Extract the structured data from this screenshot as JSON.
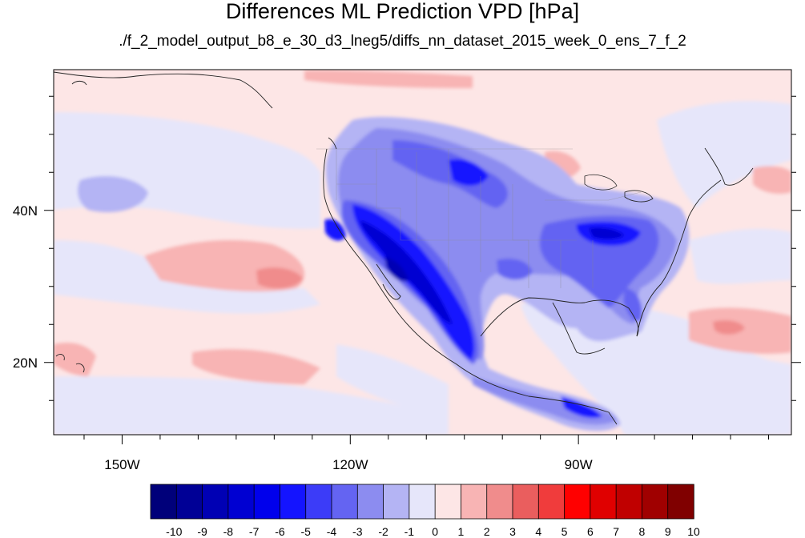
{
  "title": "Differences ML Prediction VPD [hPa]",
  "subtitle": "./f_2_model_output_b8_e_30_d3_lneg5/diffs_nn_dataset_2015_week_0_ens_7_f_2",
  "map": {
    "lon_range": [
      -159,
      -62
    ],
    "lat_range": [
      10.5,
      58.5
    ],
    "lon_ticks": [
      {
        "value": -150,
        "label": "150W"
      },
      {
        "value": -120,
        "label": "120W"
      },
      {
        "value": -90,
        "label": "90W"
      }
    ],
    "lat_ticks": [
      {
        "value": 40,
        "label": "40N"
      },
      {
        "value": 20,
        "label": "20N"
      }
    ],
    "projection": "cylindrical equidistant"
  },
  "colorbar": {
    "levels": [
      "-10",
      "-9",
      "-8",
      "-7",
      "-6",
      "-5",
      "-4",
      "-3",
      "-2",
      "-1",
      "0",
      "1",
      "2",
      "3",
      "4",
      "5",
      "6",
      "7",
      "8",
      "9",
      "10"
    ],
    "colors": [
      "#00007a",
      "#000096",
      "#0000b4",
      "#0000d2",
      "#0000ec",
      "#1414ff",
      "#3c3cf8",
      "#6464f2",
      "#8c8cf0",
      "#b4b4f4",
      "#e6e6fa",
      "#fde6e6",
      "#f8b4b4",
      "#f08c8c",
      "#ea5e5e",
      "#f03c3c",
      "#ff0000",
      "#e00000",
      "#c00000",
      "#a00000",
      "#800000"
    ]
  }
}
